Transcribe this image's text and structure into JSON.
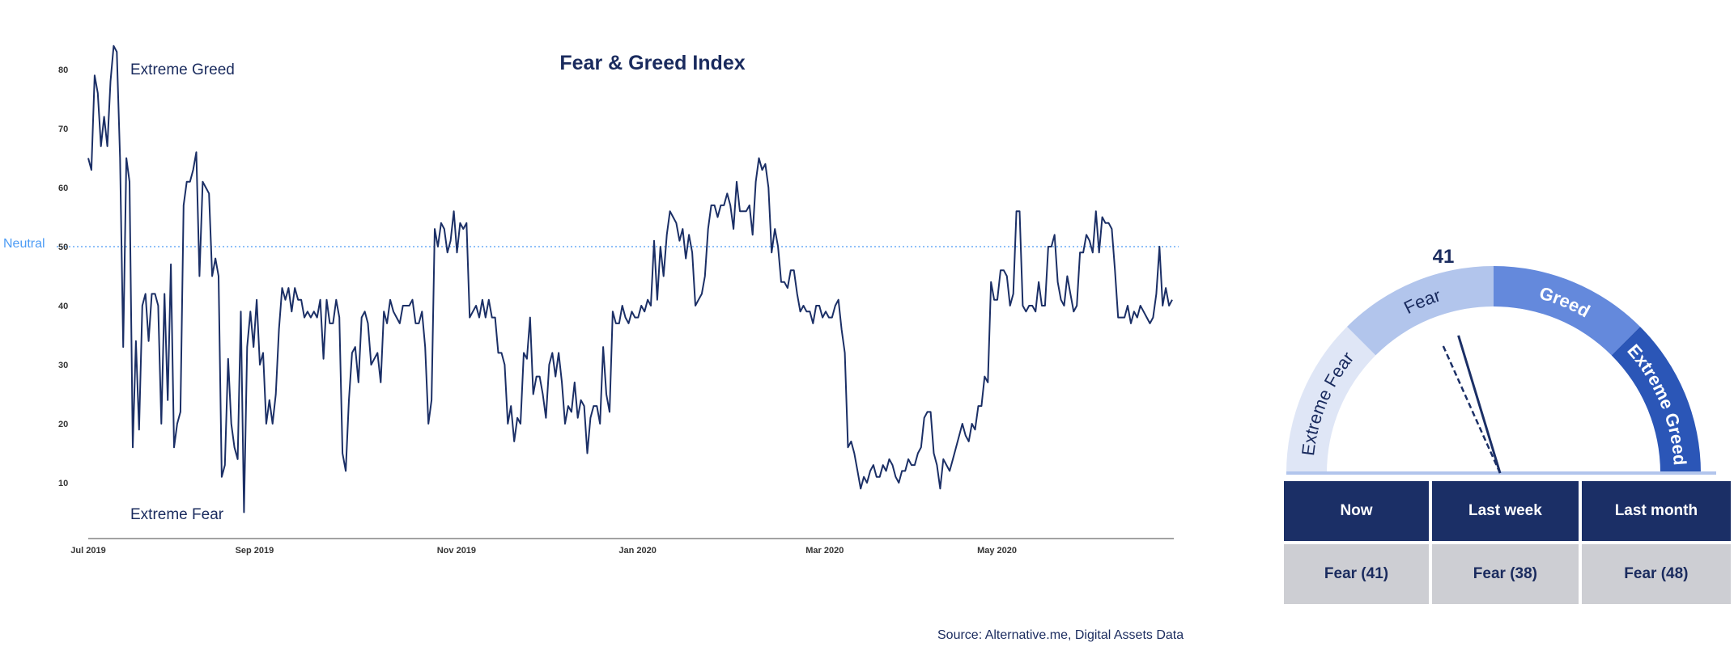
{
  "chart_data": [
    {
      "type": "line",
      "title": "Fear & Greed Index",
      "xlabel": "",
      "ylabel": "",
      "ylim": [
        0,
        85
      ],
      "xlim_days": [
        0,
        365
      ],
      "yticks": [
        10,
        20,
        30,
        40,
        50,
        60,
        70,
        80
      ],
      "xticks": [
        {
          "label": "Jul 2019",
          "day": 0
        },
        {
          "label": "Sep 2019",
          "day": 56
        },
        {
          "label": "Nov 2019",
          "day": 124
        },
        {
          "label": "Jan 2020",
          "day": 185
        },
        {
          "label": "Mar 2020",
          "day": 248
        },
        {
          "label": "May 2020",
          "day": 306
        }
      ],
      "reference_line": {
        "value": 50,
        "label": "Neutral",
        "color": "#4d9cf5"
      },
      "annotations": {
        "top": "Extreme Greed",
        "bottom": "Extreme Fear"
      },
      "line_color": "#1b2f66",
      "series": [
        {
          "name": "Fear & Greed Index",
          "values": [
            65,
            63,
            79,
            76,
            67,
            72,
            67,
            78,
            84,
            83,
            65,
            33,
            65,
            61,
            16,
            34,
            19,
            40,
            42,
            34,
            42,
            42,
            40,
            20,
            42,
            24,
            47,
            16,
            20,
            22,
            57,
            61,
            61,
            63,
            66,
            45,
            61,
            60,
            59,
            45,
            48,
            45,
            11,
            13,
            31,
            20,
            16,
            14,
            39,
            5,
            33,
            39,
            33,
            41,
            30,
            32,
            20,
            24,
            20,
            25,
            36,
            43,
            41,
            43,
            39,
            43,
            41,
            41,
            38,
            39,
            38,
            39,
            38,
            41,
            31,
            41,
            37,
            37,
            41,
            38,
            15,
            12,
            24,
            32,
            33,
            27,
            38,
            39,
            37,
            30,
            31,
            32,
            27,
            39,
            37,
            41,
            39,
            38,
            37,
            40,
            40,
            40,
            41,
            37,
            37,
            39,
            33,
            20,
            24,
            53,
            50,
            54,
            53,
            49,
            51,
            56,
            49,
            54,
            53,
            54,
            38,
            39,
            40,
            38,
            41,
            38,
            41,
            38,
            38,
            32,
            32,
            30,
            20,
            23,
            17,
            21,
            20,
            32,
            31,
            38,
            25,
            28,
            28,
            25,
            21,
            30,
            32,
            28,
            32,
            27,
            20,
            23,
            22,
            27,
            21,
            24,
            23,
            15,
            21,
            23,
            23,
            20,
            33,
            25,
            22,
            39,
            37,
            37,
            40,
            38,
            37,
            39,
            38,
            38,
            40,
            39,
            41,
            40,
            51,
            41,
            50,
            45,
            52,
            56,
            55,
            54,
            51,
            53,
            48,
            52,
            49,
            40,
            41,
            42,
            45,
            53,
            57,
            57,
            55,
            57,
            57,
            59,
            57,
            53,
            61,
            56,
            56,
            56,
            57,
            52,
            61,
            65,
            63,
            64,
            60,
            49,
            53,
            50,
            44,
            44,
            43,
            46,
            46,
            42,
            39,
            40,
            39,
            39,
            37,
            40,
            40,
            38,
            39,
            38,
            38,
            40,
            41,
            36,
            32,
            16,
            17,
            15,
            12,
            9,
            11,
            10,
            12,
            13,
            11,
            11,
            13,
            12,
            14,
            13,
            11,
            10,
            12,
            12,
            14,
            13,
            13,
            15,
            16,
            21,
            22,
            22,
            15,
            13,
            9,
            14,
            13,
            12,
            14,
            16,
            18,
            20,
            18,
            17,
            20,
            19,
            23,
            23,
            28,
            27,
            44,
            41,
            41,
            46,
            46,
            45,
            40,
            42,
            56,
            56,
            40,
            39,
            40,
            40,
            39,
            44,
            40,
            40,
            50,
            50,
            52,
            44,
            41,
            40,
            45,
            42,
            39,
            40,
            49,
            49,
            52,
            51,
            49,
            56,
            49,
            55,
            54,
            54,
            53,
            46,
            38,
            38,
            38,
            40,
            37,
            39,
            38,
            40,
            39,
            38,
            37,
            38,
            42,
            50,
            40,
            43,
            40,
            41
          ]
        }
      ]
    },
    {
      "type": "gauge",
      "value": 41,
      "previous_value": 38,
      "range": [
        0,
        100
      ],
      "segments": [
        {
          "label": "Extreme Fear",
          "from": 0,
          "to": 25,
          "color": "#dfe6f6",
          "text_color": "#1a2b5e"
        },
        {
          "label": "Fear",
          "from": 25,
          "to": 50,
          "color": "#b2c5ec",
          "text_color": "#1a2b5e"
        },
        {
          "label": "Greed",
          "from": 50,
          "to": 75,
          "color": "#6489dc",
          "text_color": "#ffffff"
        },
        {
          "label": "Extreme Greed",
          "from": 75,
          "to": 100,
          "color": "#2b56b7",
          "text_color": "#ffffff"
        }
      ]
    }
  ],
  "summary_table": {
    "headers": [
      "Now",
      "Last week",
      "Last month"
    ],
    "values": [
      "Fear (41)",
      "Fear (38)",
      "Fear (48)"
    ]
  },
  "source": "Source: Alternative.me, Digital Assets Data"
}
